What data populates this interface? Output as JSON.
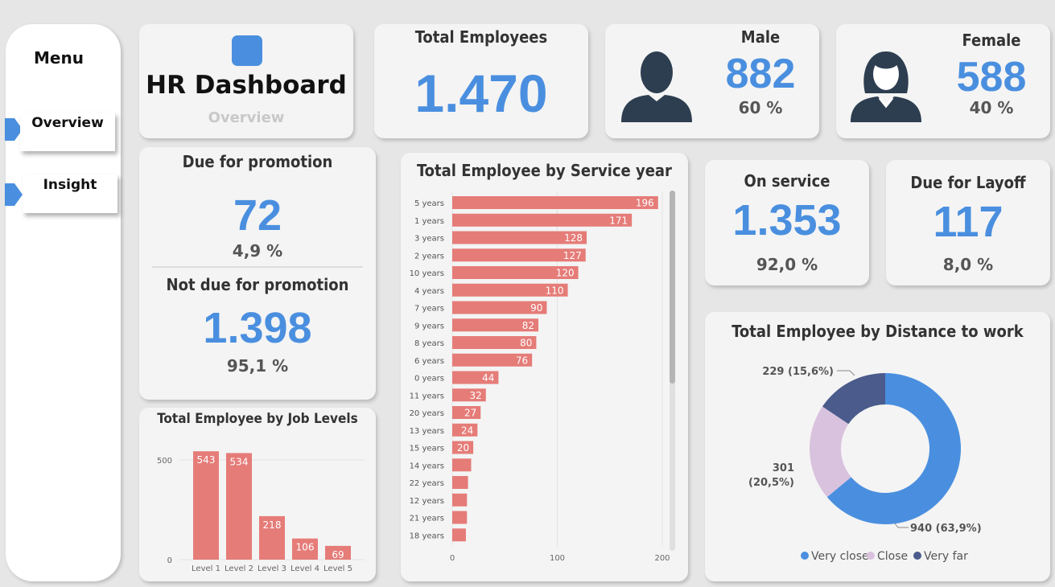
{
  "menu": {
    "title": "Menu",
    "items": [
      {
        "label": "Overview"
      },
      {
        "label": "Insight"
      }
    ]
  },
  "header": {
    "title": "HR Dashboard",
    "subtitle": "Overview"
  },
  "kpis": {
    "total": {
      "label": "Total Employees",
      "value": "1.470"
    },
    "male": {
      "label": "Male",
      "value": "882",
      "pct": "60 %"
    },
    "female": {
      "label": "Female",
      "value": "588",
      "pct": "40 %"
    },
    "due_promo": {
      "label": "Due for promotion",
      "value": "72",
      "pct": "4,9 %"
    },
    "not_due_promo": {
      "label": "Not due for promotion",
      "value": "1.398",
      "pct": "95,1 %"
    },
    "on_service": {
      "label": "On service",
      "value": "1.353",
      "pct": "92,0 %"
    },
    "layoff": {
      "label": "Due for Layoff",
      "value": "117",
      "pct": "8,0 %"
    }
  },
  "colors": {
    "accent": "#4a8fdf",
    "bar": "#e57c78",
    "very_close": "#4a8fdf",
    "close": "#d9c2dd",
    "very_far": "#4a5b8c"
  },
  "chart_data": [
    {
      "id": "service",
      "type": "bar",
      "orientation": "horizontal",
      "title": "Total Employee by Service year",
      "categories": [
        "5 years",
        "1 years",
        "3 years",
        "2 years",
        "10 years",
        "4 years",
        "7 years",
        "9 years",
        "8 years",
        "6 years",
        "0 years",
        "11 years",
        "20 years",
        "13 years",
        "15 years",
        "14 years",
        "22 years",
        "12 years",
        "21 years",
        "18 years"
      ],
      "values": [
        196,
        171,
        128,
        127,
        120,
        110,
        90,
        82,
        80,
        76,
        44,
        32,
        27,
        24,
        20,
        18,
        15,
        14,
        14,
        13
      ],
      "labels": [
        "196",
        "171",
        "128",
        "127",
        "120",
        "110",
        "90",
        "82",
        "80",
        "76",
        "44",
        "32",
        "27",
        "24",
        "20",
        "",
        "",
        "",
        "",
        ""
      ],
      "xticks": [
        "0",
        "100",
        "200"
      ],
      "xlim": [
        0,
        200
      ]
    },
    {
      "id": "joblevel",
      "type": "bar",
      "title": "Total Employee by Job Levels",
      "categories": [
        "Level 1",
        "Level 2",
        "Level 3",
        "Level 4",
        "Level 5"
      ],
      "values": [
        543,
        534,
        218,
        106,
        69
      ],
      "yticks": [
        "0",
        "500"
      ],
      "ylim": [
        0,
        560
      ]
    },
    {
      "id": "distance",
      "type": "pie",
      "title": "Total Employee by Distance to work",
      "slices": [
        {
          "name": "Very close",
          "value": 940,
          "label": "940 (63,9%)"
        },
        {
          "name": "Close",
          "value": 301,
          "label_l1": "301",
          "label_l2": "(20,5%)"
        },
        {
          "name": "Very far",
          "value": 229,
          "label": "229 (15,6%)"
        }
      ],
      "legend": "bottom"
    }
  ]
}
